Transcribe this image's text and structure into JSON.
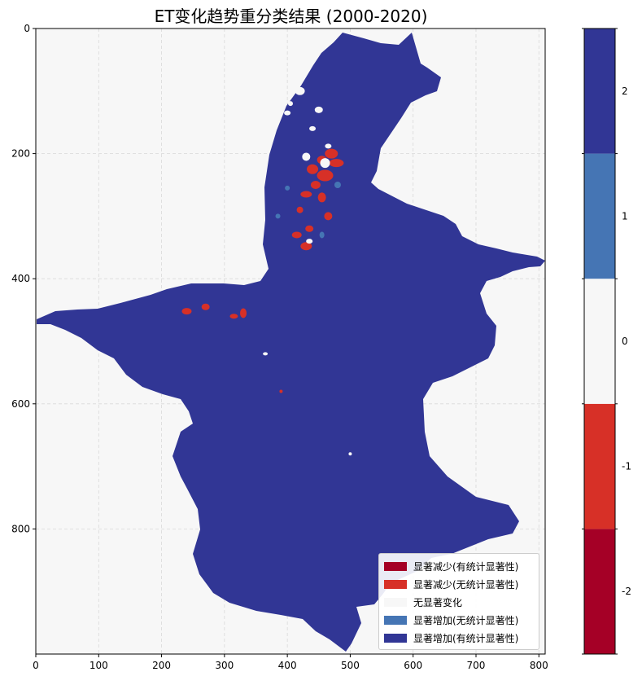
{
  "chart_data": {
    "type": "heatmap",
    "title": "ET变化趋势重分类结果 (2000-2020)",
    "xlim": [
      0,
      810
    ],
    "ylim": [
      1000,
      0
    ],
    "xticks": [
      0,
      100,
      200,
      300,
      400,
      500,
      600,
      700,
      800
    ],
    "yticks": [
      0,
      200,
      400,
      600,
      800
    ],
    "grid": true,
    "legend_placement": "bottom-right",
    "classes": [
      {
        "value": -2,
        "label": "显著减少(有统计显著性)",
        "color": "#a50026"
      },
      {
        "value": -1,
        "label": "显著减少(无统计显著性)",
        "color": "#d73027"
      },
      {
        "value": 0,
        "label": "无显著变化",
        "color": "#f7f7f7"
      },
      {
        "value": 1,
        "label": "显著增加(无统计显著性)",
        "color": "#4575b4"
      },
      {
        "value": 2,
        "label": "显著增加(有统计显著性)",
        "color": "#313695"
      }
    ],
    "colorbar": {
      "ticks": [
        -2,
        -1,
        0,
        1,
        2
      ],
      "tick_labels": [
        "-2",
        "-1",
        "0",
        "1",
        "2"
      ],
      "range": [
        -2.5,
        2.5
      ]
    },
    "background_color": "#f7f7f7"
  }
}
